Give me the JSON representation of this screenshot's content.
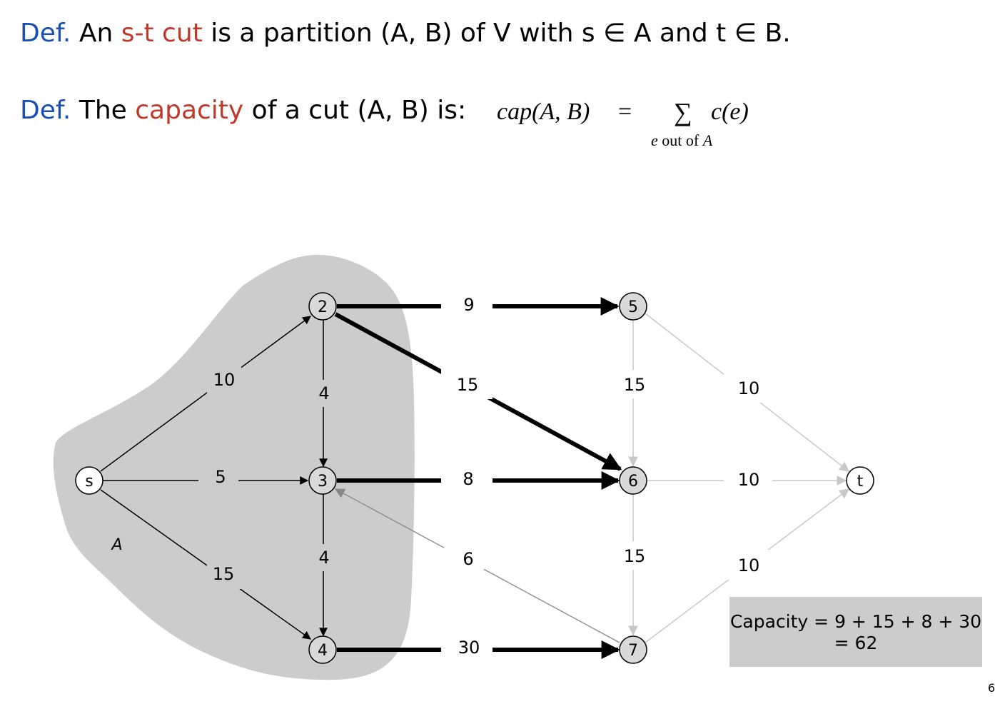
{
  "definitions": {
    "def1": {
      "label": "Def.",
      "before": "An ",
      "term": "s-t cut",
      "after": " is a partition (A, B) of V with s ∈ A and t ∈ B."
    },
    "def2": {
      "label": "Def.",
      "before": "The ",
      "term": "capacity",
      "after": " of a cut (A, B) is:"
    }
  },
  "formula": {
    "lhs": "cap(A, B)",
    "eq": "=",
    "sigma": "∑",
    "term": "c(e)",
    "subscript_e": "e",
    "subscript_mid": " out of ",
    "subscript_A": "A"
  },
  "graph": {
    "region_label": "A",
    "nodes": {
      "s": "s",
      "n2": "2",
      "n3": "3",
      "n4": "4",
      "n5": "5",
      "n6": "6",
      "n7": "7",
      "t": "t"
    },
    "edge_labels": {
      "s_2": "10",
      "s_3": "5",
      "s_4": "15",
      "e2_3": "4",
      "e3_4": "4",
      "e2_5": "9",
      "e2_6": "15",
      "e3_6": "8",
      "e4_7": "30",
      "e7_3": "6",
      "e5_6": "15",
      "e6_7": "15",
      "e5_t": "10",
      "e6_t": "10",
      "e7_t": "10"
    }
  },
  "caption": {
    "line1": "Capacity = 9 + 15 + 8 + 30",
    "line2": "= 62"
  },
  "colors": {
    "definition_word": "#1a4fb3",
    "highlight_term": "#c0392b",
    "cut_region": "#cccccc",
    "node_fill": "#d9d9d9"
  },
  "page_number": "6"
}
